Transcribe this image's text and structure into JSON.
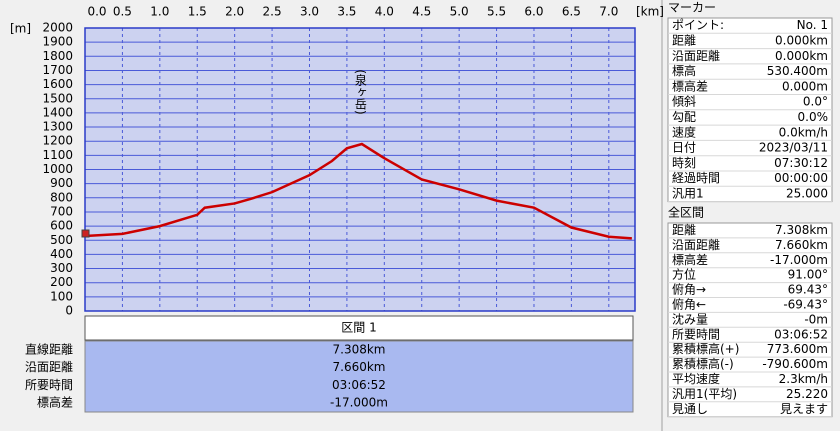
{
  "chart_data": {
    "type": "line",
    "x_label": "[km]",
    "y_label": "[m]",
    "annotation": "(泉ヶ岳)",
    "x": [
      0,
      0.5,
      1.0,
      1.5,
      1.6,
      2.0,
      2.2,
      2.5,
      3.0,
      3.3,
      3.5,
      3.7,
      4.0,
      4.5,
      5.0,
      5.5,
      6.0,
      6.5,
      7.0,
      7.308
    ],
    "series": [
      {
        "color": "#cc0000",
        "values": [
          530,
          545,
          600,
          680,
          730,
          760,
          790,
          840,
          960,
          1060,
          1150,
          1180,
          1080,
          930,
          860,
          780,
          730,
          590,
          525,
          513
        ]
      }
    ],
    "xlim": [
      0,
      7.35
    ],
    "ylim": [
      0,
      2000
    ],
    "xticks": [
      {
        "value": 0,
        "label": "0.0"
      },
      0.5,
      {
        "value": 1,
        "label": "1.0"
      },
      1.5,
      {
        "value": 2,
        "label": "2.0"
      },
      2.5,
      {
        "value": 3,
        "label": "3.0"
      },
      3.5,
      {
        "value": 4,
        "label": "4.0"
      },
      4.5,
      {
        "value": 5,
        "label": "5.0"
      },
      5.5,
      {
        "value": 6,
        "label": "6.0"
      },
      6.5,
      {
        "value": 7,
        "label": "7.0"
      }
    ],
    "yticks": [
      0,
      100,
      200,
      300,
      400,
      500,
      600,
      700,
      800,
      900,
      1000,
      1100,
      1200,
      1300,
      1400,
      1500,
      1600,
      1700,
      1800,
      1900,
      2000
    ],
    "grid": true
  },
  "section_table": {
    "header": "区間 1",
    "rows": [
      [
        "直線距離",
        "7.308km"
      ],
      [
        "沿面距離",
        "7.660km"
      ],
      [
        "所要時間",
        "03:06:52"
      ],
      [
        "標高差",
        "-17.000m"
      ]
    ]
  },
  "marker_panel": {
    "title": "マーカー",
    "rows": [
      [
        "ポイント:",
        "No. 1"
      ],
      [
        "距離",
        "0.000km"
      ],
      [
        "沿面距離",
        "0.000km"
      ],
      [
        "標高",
        "530.400m"
      ],
      [
        "標高差",
        "0.000m"
      ],
      [
        "傾斜",
        "0.0°"
      ],
      [
        "勾配",
        "0.0%"
      ],
      [
        "速度",
        "0.0km/h"
      ],
      [
        "日付",
        "2023/03/11"
      ],
      [
        "時刻",
        "07:30:12"
      ],
      [
        "経過時間",
        "00:00:00"
      ],
      [
        "汎用1",
        "25.000"
      ]
    ]
  },
  "total_panel": {
    "title": "全区間",
    "rows": [
      [
        "距離",
        "7.308km"
      ],
      [
        "沿面距離",
        "7.660km"
      ],
      [
        "標高差",
        "-17.000m"
      ],
      [
        "方位",
        "91.00°"
      ],
      [
        "俯角→",
        "69.43°"
      ],
      [
        "俯角←",
        "-69.43°"
      ],
      [
        "沈み量",
        "-0m"
      ],
      [
        "所要時間",
        "03:06:52"
      ],
      [
        "累積標高(+)",
        "773.600m"
      ],
      [
        "累積標高(-)",
        "-790.600m"
      ],
      [
        "平均速度",
        "2.3km/h"
      ],
      [
        "汎用1(平均)",
        "25.220"
      ],
      [
        "見通し",
        "見えます"
      ]
    ]
  }
}
